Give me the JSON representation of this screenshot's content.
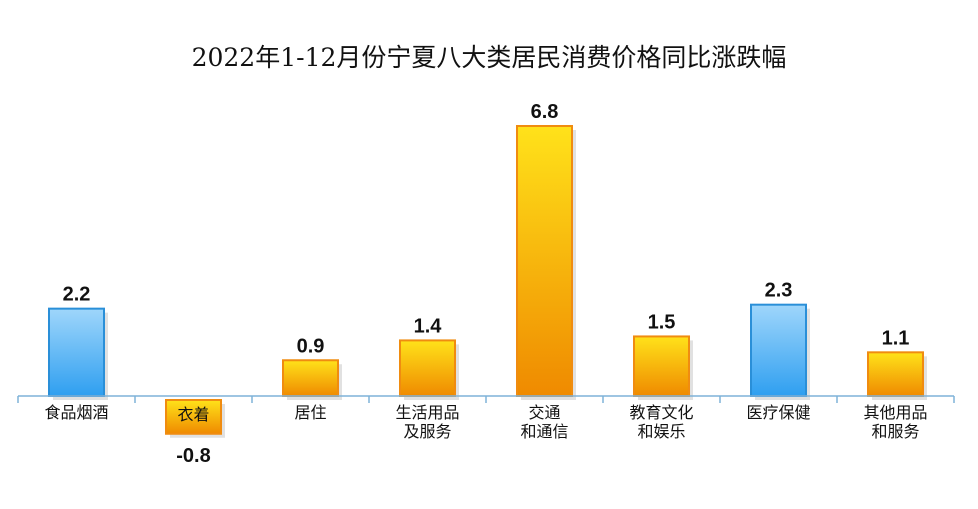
{
  "chart_data": {
    "type": "bar",
    "title": "2022年1-12月份宁夏八大类居民消费价格同比涨跌幅",
    "categories": [
      [
        "食品烟酒"
      ],
      [
        "衣着"
      ],
      [
        "居住"
      ],
      [
        "生活用品",
        "及服务"
      ],
      [
        "交通",
        "和通信"
      ],
      [
        "教育文化",
        "和娱乐"
      ],
      [
        "医疗保健"
      ],
      [
        "其他用品",
        "和服务"
      ]
    ],
    "values": [
      2.2,
      -0.8,
      0.9,
      1.4,
      6.8,
      1.5,
      2.3,
      1.1
    ],
    "value_labels": [
      "2.2",
      "-0.8",
      "0.9",
      "1.4",
      "6.8",
      "1.5",
      "2.3",
      "1.1"
    ],
    "bar_styles": [
      "blue",
      "orange",
      "orange",
      "orange",
      "orange",
      "orange",
      "blue",
      "orange"
    ],
    "colors": {
      "blue_top": "#9fd6fb",
      "blue_bottom": "#2f9ff0",
      "blue_edge": "#2a8fd8",
      "orange_top": "#ffe21a",
      "orange_bottom": "#ef8a00",
      "orange_edge": "#f08c10",
      "axis": "#7fb2d8"
    },
    "xlabel": "",
    "ylabel": "",
    "ylim": [
      -0.8,
      6.8
    ],
    "grid": false,
    "legend": "none"
  }
}
